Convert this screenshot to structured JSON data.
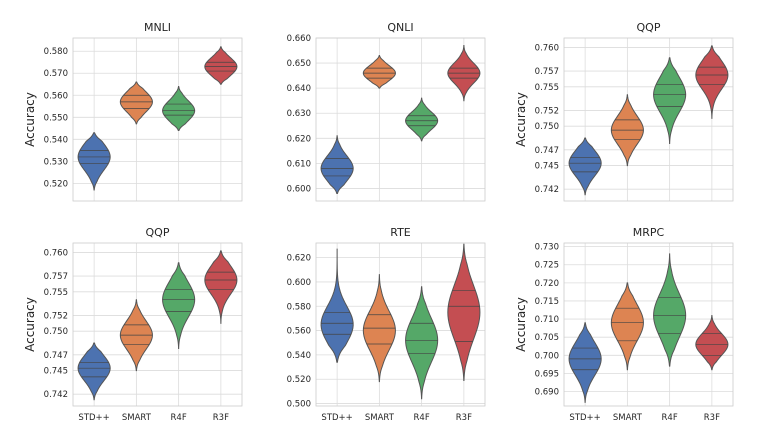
{
  "colors": {
    "STD++": "#4c72b0",
    "SMART": "#dd8452",
    "R4F": "#55a868",
    "R3F": "#c44e52"
  },
  "chart_data": [
    {
      "type": "violin",
      "title": "MNLI",
      "ylabel": "Accuracy",
      "categories": [
        "STD++",
        "SMART",
        "R4F",
        "R3F"
      ],
      "show_xticks": false,
      "ylim": [
        0.512,
        0.586
      ],
      "yticks": [
        "0.520",
        "0.530",
        "0.540",
        "0.550",
        "0.560",
        "0.570",
        "0.580"
      ],
      "series": [
        {
          "name": "STD++",
          "min": 0.517,
          "max": 0.543,
          "center": 0.532,
          "spread": 0.006,
          "quartiles": [
            0.529,
            0.532,
            0.535
          ]
        },
        {
          "name": "SMART",
          "min": 0.547,
          "max": 0.566,
          "center": 0.557,
          "spread": 0.0045,
          "quartiles": [
            0.554,
            0.557,
            0.56
          ]
        },
        {
          "name": "R4F",
          "min": 0.544,
          "max": 0.564,
          "center": 0.553,
          "spread": 0.0045,
          "quartiles": [
            0.551,
            0.553,
            0.556
          ]
        },
        {
          "name": "R3F",
          "min": 0.565,
          "max": 0.582,
          "center": 0.573,
          "spread": 0.004,
          "quartiles": [
            0.571,
            0.573,
            0.575
          ]
        }
      ]
    },
    {
      "type": "violin",
      "title": "QNLI",
      "ylabel": "",
      "categories": [
        "STD++",
        "SMART",
        "R4F",
        "R3F"
      ],
      "show_xticks": false,
      "ylim": [
        0.595,
        0.66
      ],
      "yticks": [
        "0.600",
        "0.610",
        "0.620",
        "0.630",
        "0.640",
        "0.650",
        "0.660"
      ],
      "series": [
        {
          "name": "STD++",
          "min": 0.598,
          "max": 0.621,
          "center": 0.608,
          "spread": 0.005,
          "quartiles": [
            0.605,
            0.608,
            0.612
          ]
        },
        {
          "name": "SMART",
          "min": 0.64,
          "max": 0.653,
          "center": 0.646,
          "spread": 0.003,
          "quartiles": [
            0.644,
            0.646,
            0.648
          ]
        },
        {
          "name": "R4F",
          "min": 0.619,
          "max": 0.636,
          "center": 0.627,
          "spread": 0.0035,
          "quartiles": [
            0.625,
            0.627,
            0.629
          ]
        },
        {
          "name": "R3F",
          "min": 0.635,
          "max": 0.657,
          "center": 0.646,
          "spread": 0.004,
          "quartiles": [
            0.644,
            0.646,
            0.648
          ]
        }
      ]
    },
    {
      "type": "violin",
      "title": "QQP",
      "ylabel": "Accuracy",
      "categories": [
        "STD++",
        "SMART",
        "R4F",
        "R3F"
      ],
      "show_xticks": false,
      "ylim": [
        0.7405,
        0.7612
      ],
      "yticks": [
        "0.742",
        "0.745",
        "0.747",
        "0.750",
        "0.752",
        "0.755",
        "0.757",
        "0.760"
      ],
      "series": [
        {
          "name": "STD++",
          "min": 0.7413,
          "max": 0.7485,
          "center": 0.7453,
          "spread": 0.0016,
          "quartiles": [
            0.7442,
            0.7453,
            0.746
          ]
        },
        {
          "name": "SMART",
          "min": 0.745,
          "max": 0.754,
          "center": 0.7495,
          "spread": 0.0018,
          "quartiles": [
            0.7483,
            0.7495,
            0.7508
          ]
        },
        {
          "name": "R4F",
          "min": 0.7478,
          "max": 0.7587,
          "center": 0.754,
          "spread": 0.0022,
          "quartiles": [
            0.7525,
            0.754,
            0.7553
          ]
        },
        {
          "name": "R3F",
          "min": 0.751,
          "max": 0.7602,
          "center": 0.7565,
          "spread": 0.0018,
          "quartiles": [
            0.7553,
            0.7565,
            0.7575
          ]
        }
      ]
    },
    {
      "type": "violin",
      "title": "QQP",
      "ylabel": "Accuracy",
      "categories": [
        "STD++",
        "SMART",
        "R4F",
        "R3F"
      ],
      "show_xticks": true,
      "ylim": [
        0.7405,
        0.7612
      ],
      "yticks": [
        "0.742",
        "0.745",
        "0.747",
        "0.750",
        "0.752",
        "0.755",
        "0.757",
        "0.760"
      ],
      "series": [
        {
          "name": "STD++",
          "min": 0.7413,
          "max": 0.7485,
          "center": 0.7453,
          "spread": 0.0016,
          "quartiles": [
            0.7442,
            0.7453,
            0.746
          ]
        },
        {
          "name": "SMART",
          "min": 0.745,
          "max": 0.754,
          "center": 0.7495,
          "spread": 0.0018,
          "quartiles": [
            0.7483,
            0.7495,
            0.7508
          ]
        },
        {
          "name": "R4F",
          "min": 0.7478,
          "max": 0.7587,
          "center": 0.754,
          "spread": 0.0022,
          "quartiles": [
            0.7525,
            0.754,
            0.7553
          ]
        },
        {
          "name": "R3F",
          "min": 0.751,
          "max": 0.7602,
          "center": 0.7565,
          "spread": 0.0018,
          "quartiles": [
            0.7553,
            0.7565,
            0.7575
          ]
        }
      ]
    },
    {
      "type": "violin",
      "title": "RTE",
      "ylabel": "",
      "categories": [
        "STD++",
        "SMART",
        "R4F",
        "R3F"
      ],
      "show_xticks": true,
      "ylim": [
        0.498,
        0.632
      ],
      "yticks": [
        "0.500",
        "0.520",
        "0.540",
        "0.560",
        "0.580",
        "0.600",
        "0.620"
      ],
      "series": [
        {
          "name": "STD++",
          "min": 0.534,
          "max": 0.627,
          "center": 0.565,
          "spread": 0.015,
          "quartiles": [
            0.557,
            0.566,
            0.575
          ]
        },
        {
          "name": "SMART",
          "min": 0.518,
          "max": 0.606,
          "center": 0.56,
          "spread": 0.016,
          "quartiles": [
            0.549,
            0.562,
            0.573
          ]
        },
        {
          "name": "R4F",
          "min": 0.504,
          "max": 0.596,
          "center": 0.552,
          "spread": 0.018,
          "quartiles": [
            0.541,
            0.552,
            0.566
          ]
        },
        {
          "name": "R3F",
          "min": 0.519,
          "max": 0.631,
          "center": 0.575,
          "spread": 0.022,
          "quartiles": [
            0.551,
            0.58,
            0.593
          ]
        }
      ]
    },
    {
      "type": "violin",
      "title": "MRPC",
      "ylabel": "Accuracy",
      "categories": [
        "STD++",
        "SMART",
        "R4F",
        "R3F"
      ],
      "show_xticks": true,
      "ylim": [
        0.686,
        0.731
      ],
      "yticks": [
        "0.690",
        "0.695",
        "0.700",
        "0.705",
        "0.710",
        "0.715",
        "0.720",
        "0.725",
        "0.730"
      ],
      "series": [
        {
          "name": "STD++",
          "min": 0.687,
          "max": 0.709,
          "center": 0.699,
          "spread": 0.0045,
          "quartiles": [
            0.696,
            0.699,
            0.702
          ]
        },
        {
          "name": "SMART",
          "min": 0.696,
          "max": 0.72,
          "center": 0.709,
          "spread": 0.005,
          "quartiles": [
            0.704,
            0.709,
            0.713
          ]
        },
        {
          "name": "R4F",
          "min": 0.697,
          "max": 0.728,
          "center": 0.711,
          "spread": 0.006,
          "quartiles": [
            0.706,
            0.711,
            0.716
          ]
        },
        {
          "name": "R3F",
          "min": 0.696,
          "max": 0.711,
          "center": 0.703,
          "spread": 0.003,
          "quartiles": [
            0.7,
            0.703,
            0.706
          ]
        }
      ]
    }
  ]
}
